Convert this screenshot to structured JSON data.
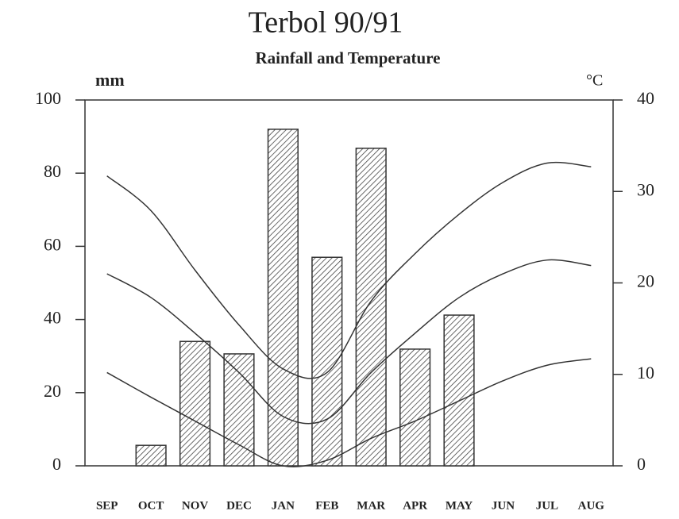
{
  "chart_data": {
    "type": "bar-line",
    "title": "Terbol 90/91",
    "subtitle": "Rainfall and Temperature",
    "y_label": "mm",
    "y2_label": "°C",
    "categories": [
      "SEP",
      "OCT",
      "NOV",
      "DEC",
      "JAN",
      "FEB",
      "MAR",
      "APR",
      "MAY",
      "JUN",
      "JUL",
      "AUG"
    ],
    "series": [
      {
        "type": "bar",
        "axis": "y",
        "color": "#333333",
        "values": [
          null,
          5.6,
          34,
          30.6,
          92,
          57,
          86.8,
          31.9,
          41.2,
          null,
          null,
          null
        ]
      },
      {
        "type": "line",
        "axis": "y2",
        "color": "#333333",
        "values": [
          31.7,
          27.9,
          21.4,
          15.4,
          10.6,
          10.2,
          18,
          23.2,
          27.5,
          31,
          33.1,
          32.7
        ]
      },
      {
        "type": "line",
        "axis": "y2",
        "color": "#333333",
        "values": [
          21,
          18.4,
          14.5,
          10.2,
          5.4,
          5.1,
          10.2,
          14.5,
          18.4,
          21,
          22.5,
          21.9
        ]
      },
      {
        "type": "line",
        "axis": "y2",
        "color": "#333333",
        "values": [
          10.2,
          7.5,
          4.9,
          2.3,
          0,
          0.6,
          3,
          4.9,
          7.1,
          9.3,
          11,
          11.7
        ]
      }
    ],
    "ylim": [
      0,
      100
    ],
    "yticks": [
      0,
      20,
      40,
      60,
      80,
      100
    ],
    "y2lim": [
      0,
      40
    ],
    "y2ticks": [
      0,
      10,
      20,
      30,
      40
    ],
    "grid": false
  }
}
